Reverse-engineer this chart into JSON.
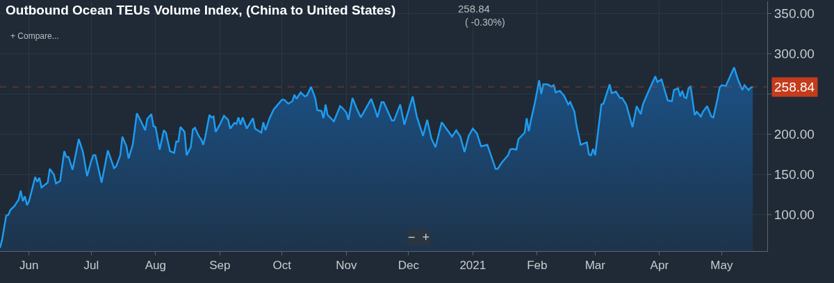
{
  "chart_data": {
    "type": "area",
    "title": "Outbound Ocean TEUs Volume Index, (China to United States)",
    "annotations": [
      "258.84",
      "( -0.30%)",
      "+ Compare...",
      "−  +"
    ],
    "x": [
      "2020-05-18",
      "2020-05-19",
      "2020-05-21",
      "2020-05-22",
      "2020-05-23",
      "2020-05-25",
      "2020-05-27",
      "2020-05-28",
      "2020-05-29",
      "2020-05-30",
      "2020-05-31",
      "2020-06-01",
      "2020-06-04",
      "2020-06-05",
      "2020-06-06",
      "2020-06-07",
      "2020-06-10",
      "2020-06-11",
      "2020-06-13",
      "2020-06-14",
      "2020-06-16",
      "2020-06-18",
      "2020-06-19",
      "2020-06-20",
      "2020-06-22",
      "2020-06-25",
      "2020-06-27",
      "2020-06-29",
      "2020-07-01",
      "2020-07-02",
      "2020-07-03",
      "2020-07-06",
      "2020-07-09",
      "2020-07-12",
      "2020-07-13",
      "2020-07-15",
      "2020-07-16",
      "2020-07-18",
      "2020-07-19",
      "2020-07-21",
      "2020-07-23",
      "2020-07-25",
      "2020-07-27",
      "2020-07-28",
      "2020-07-30",
      "2020-07-31",
      "2020-08-01",
      "2020-08-03",
      "2020-08-05",
      "2020-08-06",
      "2020-08-08",
      "2020-08-10",
      "2020-08-11",
      "2020-08-12",
      "2020-08-13",
      "2020-08-15",
      "2020-08-16",
      "2020-08-18",
      "2020-08-19",
      "2020-08-20",
      "2020-08-22",
      "2020-08-23",
      "2020-08-24",
      "2020-08-25",
      "2020-08-27",
      "2020-08-28",
      "2020-08-29",
      "2020-08-30",
      "2020-09-01",
      "2020-09-03",
      "2020-09-05",
      "2020-09-06",
      "2020-09-08",
      "2020-09-09",
      "2020-09-10",
      "2020-09-11",
      "2020-09-12",
      "2020-09-14",
      "2020-09-17",
      "2020-09-18",
      "2020-09-21",
      "2020-09-22",
      "2020-09-23",
      "2020-09-25",
      "2020-09-27",
      "2020-09-29",
      "2020-10-01",
      "2020-10-02",
      "2020-10-04",
      "2020-10-06",
      "2020-10-07",
      "2020-10-08",
      "2020-10-10",
      "2020-10-12",
      "2020-10-13",
      "2020-10-15",
      "2020-10-17",
      "2020-10-18",
      "2020-10-20",
      "2020-10-21",
      "2020-10-22",
      "2020-10-23",
      "2020-10-26",
      "2020-10-29",
      "2020-10-30",
      "2020-11-01",
      "2020-11-02",
      "2020-11-04",
      "2020-11-06",
      "2020-11-08",
      "2020-11-13",
      "2020-11-15",
      "2020-11-16",
      "2020-11-18",
      "2020-11-19",
      "2020-11-23",
      "2020-11-24",
      "2020-11-27",
      "2020-11-29",
      "2020-12-03",
      "2020-12-05",
      "2020-12-08",
      "2020-12-10",
      "2020-12-12",
      "2020-12-14",
      "2020-12-17",
      "2020-12-22",
      "2020-12-24",
      "2020-12-26",
      "2020-12-28",
      "2020-12-30",
      "2021-01-01",
      "2021-01-03",
      "2021-01-05",
      "2021-01-08",
      "2021-01-12",
      "2021-01-13",
      "2021-01-15",
      "2021-01-17",
      "2021-01-18",
      "2021-01-19",
      "2021-01-20",
      "2021-01-22",
      "2021-01-23",
      "2021-01-26",
      "2021-01-27",
      "2021-01-28",
      "2021-01-29",
      "2021-01-31",
      "2021-02-02",
      "2021-02-03",
      "2021-02-04",
      "2021-02-06",
      "2021-02-08",
      "2021-02-09",
      "2021-02-10",
      "2021-02-12",
      "2021-02-14",
      "2021-02-16",
      "2021-02-17",
      "2021-02-19",
      "2021-02-20",
      "2021-02-22",
      "2021-02-24",
      "2021-02-25",
      "2021-02-26",
      "2021-02-27",
      "2021-02-28",
      "2021-03-01",
      "2021-03-04",
      "2021-03-05",
      "2021-03-07",
      "2021-03-08",
      "2021-03-09",
      "2021-03-11",
      "2021-03-13",
      "2021-03-14",
      "2021-03-16",
      "2021-03-19",
      "2021-03-21",
      "2021-03-23",
      "2021-03-24",
      "2021-03-27",
      "2021-03-30",
      "2021-03-31",
      "2021-04-02",
      "2021-04-05",
      "2021-04-07",
      "2021-04-08",
      "2021-04-10",
      "2021-04-11",
      "2021-04-12",
      "2021-04-13",
      "2021-04-14",
      "2021-04-15",
      "2021-04-16",
      "2021-04-18",
      "2021-04-19",
      "2021-04-21",
      "2021-04-22",
      "2021-04-24",
      "2021-04-26",
      "2021-04-27",
      "2021-04-29",
      "2021-04-30",
      "2021-05-01",
      "2021-05-03",
      "2021-05-07",
      "2021-05-09",
      "2021-05-11",
      "2021-05-12",
      "2021-05-14",
      "2021-05-15",
      "2021-05-16"
    ],
    "series": [
      {
        "color": "#1e9bf0",
        "values": [
          59,
          69,
          99,
          100,
          106,
          111,
          119,
          130,
          117,
          123,
          112,
          117,
          147,
          141,
          146,
          134,
          140,
          157,
          150,
          139,
          142,
          179,
          172,
          172,
          156,
          194,
          178,
          148,
          167,
          174,
          174,
          140,
          180,
          158,
          160,
          174,
          197,
          185,
          170,
          187,
          226,
          216,
          205,
          219,
          225,
          210,
          209,
          181,
          205,
          202,
          179,
          177,
          191,
          191,
          209,
          203,
          174,
          184,
          206,
          208,
          197,
          194,
          187,
          197,
          224,
          221,
          222,
          203,
          212,
          223,
          218,
          207,
          214,
          213,
          221,
          212,
          221,
          207,
          220,
          207,
          202,
          215,
          205,
          220,
          231,
          237,
          243,
          243,
          238,
          241,
          249,
          244,
          252,
          247,
          248,
          259,
          245,
          230,
          229,
          220,
          237,
          224,
          216,
          235,
          233,
          227,
          218,
          245,
          232,
          221,
          244,
          230,
          221,
          240,
          240,
          217,
          217,
          237,
          212,
          247,
          222,
          198,
          218,
          195,
          184,
          215,
          197,
          205,
          197,
          178,
          198,
          207,
          201,
          185,
          187,
          157,
          157,
          165,
          171,
          174,
          181,
          182,
          181,
          194,
          202,
          220,
          204,
          217,
          240,
          267,
          250,
          262,
          262,
          259,
          261,
          252,
          254,
          248,
          237,
          240,
          228,
          211,
          187,
          189,
          190,
          175,
          174,
          182,
          174,
          237,
          238,
          254,
          262,
          251,
          253,
          245,
          245,
          237,
          209,
          235,
          225,
          237,
          255,
          272,
          265,
          268,
          242,
          241,
          255,
          257,
          247,
          254,
          246,
          245,
          257,
          260,
          224,
          228,
          222,
          228,
          235,
          222,
          221,
          244,
          258,
          261,
          260,
          283,
          267,
          255,
          261,
          255,
          258,
          258.84
        ]
      }
    ],
    "xlim": [
      "2020-05-18",
      "2021-05-23"
    ],
    "xticks": [
      {
        "value": "2020-06-01",
        "label": "Jun"
      },
      {
        "value": "2020-07-01",
        "label": "Jul"
      },
      {
        "value": "2020-08-01",
        "label": "Aug"
      },
      {
        "value": "2020-09-01",
        "label": "Sep"
      },
      {
        "value": "2020-10-01",
        "label": "Oct"
      },
      {
        "value": "2020-11-01",
        "label": "Nov"
      },
      {
        "value": "2020-12-01",
        "label": "Dec"
      },
      {
        "value": "2021-01-01",
        "label": "2021"
      },
      {
        "value": "2021-02-01",
        "label": "Feb"
      },
      {
        "value": "2021-03-01",
        "label": "Mar"
      },
      {
        "value": "2021-04-01",
        "label": "Apr"
      },
      {
        "value": "2021-05-01",
        "label": "May"
      }
    ],
    "ylim": [
      55,
      365
    ],
    "yticks": [
      {
        "value": 100,
        "label": "100.00"
      },
      {
        "value": 150,
        "label": "150.00"
      },
      {
        "value": 200,
        "label": "200.00"
      },
      {
        "value": 250,
        "label": null
      },
      {
        "value": 300,
        "label": "300.00"
      },
      {
        "value": 350,
        "label": "350.00"
      }
    ],
    "ref_lines": [
      {
        "axis": "y",
        "value": 258.84,
        "label": "258.84",
        "color": "#c43c1c",
        "line_style": "dashed"
      }
    ],
    "grid": true
  }
}
